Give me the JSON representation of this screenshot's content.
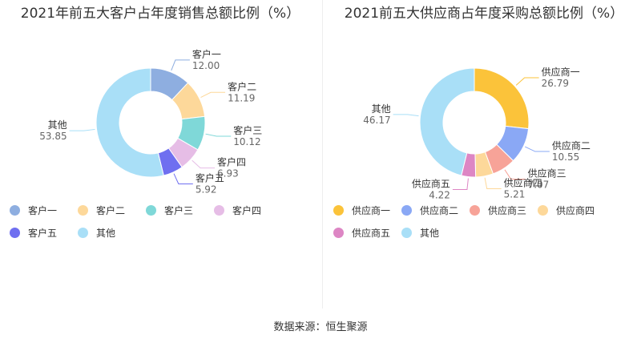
{
  "source": "数据来源：恒生聚源",
  "chart_data": [
    {
      "type": "pie",
      "title": "2021年前五大客户占年度销售总额比例（%）",
      "categories": [
        "客户一",
        "客户二",
        "客户三",
        "客户四",
        "客户五",
        "其他"
      ],
      "values": [
        12.0,
        11.19,
        10.12,
        6.93,
        5.92,
        53.85
      ],
      "value_labels": [
        "12.00",
        "11.19",
        "10.12",
        "6.93",
        "5.92",
        "53.85"
      ],
      "colors": [
        "#8eaee0",
        "#fdd89a",
        "#7fd8d8",
        "#e6bde6",
        "#6f6ff0",
        "#a9dff7"
      ],
      "legend_position": "bottom-left"
    },
    {
      "type": "pie",
      "title": "2021前五大供应商占年度采购总额比例（%）",
      "categories": [
        "供应商一",
        "供应商二",
        "供应商三",
        "供应商四",
        "供应商五",
        "其他"
      ],
      "values": [
        26.79,
        10.55,
        7.07,
        5.21,
        4.22,
        46.17
      ],
      "value_labels": [
        "26.79",
        "10.55",
        "7.07",
        "5.21",
        "4.22",
        "46.17"
      ],
      "colors": [
        "#fbc33a",
        "#8aa8f5",
        "#f7a398",
        "#fdd89a",
        "#dd86c4",
        "#a9dff7"
      ],
      "legend_position": "bottom-left"
    }
  ]
}
